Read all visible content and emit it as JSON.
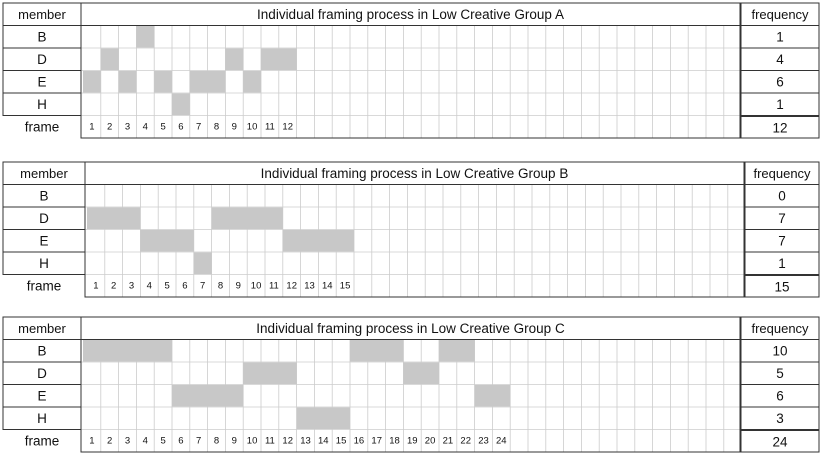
{
  "headers": {
    "member": "member",
    "frequency": "frequency",
    "frame": "frame"
  },
  "colors": {
    "fill": "#c8c8c8",
    "grid": "#cccccc",
    "border": "#333333"
  },
  "blocks": [
    {
      "title": "Individual framing process in Low Creative Group A",
      "frame_labels": [
        "1",
        "2",
        "3",
        "4",
        "5",
        "6",
        "7",
        "8",
        "9",
        "10",
        "11",
        "12"
      ],
      "total": "12",
      "rows": [
        {
          "member": "B",
          "frequency": "1",
          "frames": [
            4
          ]
        },
        {
          "member": "D",
          "frequency": "4",
          "frames": [
            2,
            9,
            11,
            12
          ]
        },
        {
          "member": "E",
          "frequency": "6",
          "frames": [
            1,
            3,
            5,
            7,
            8,
            10
          ]
        },
        {
          "member": "H",
          "frequency": "1",
          "frames": [
            6
          ]
        }
      ]
    },
    {
      "title": "Individual framing process in Low Creative Group B",
      "frame_labels": [
        "1",
        "2",
        "3",
        "4",
        "5",
        "6",
        "7",
        "8",
        "9",
        "10",
        "11",
        "12",
        "13",
        "14",
        "15"
      ],
      "total": "15",
      "rows": [
        {
          "member": "B",
          "frequency": "0",
          "frames": []
        },
        {
          "member": "D",
          "frequency": "7",
          "frames": [
            1,
            2,
            3,
            8,
            9,
            10,
            11
          ]
        },
        {
          "member": "E",
          "frequency": "7",
          "frames": [
            4,
            5,
            6,
            12,
            13,
            14,
            15
          ]
        },
        {
          "member": "H",
          "frequency": "1",
          "frames": [
            7
          ]
        }
      ]
    },
    {
      "title": "Individual framing process in Low Creative Group C",
      "frame_labels": [
        "1",
        "2",
        "3",
        "4",
        "5",
        "6",
        "7",
        "8",
        "9",
        "10",
        "11",
        "12",
        "13",
        "14",
        "15",
        "16",
        "17",
        "18",
        "19",
        "20",
        "21",
        "22",
        "23",
        "24"
      ],
      "total": "24",
      "rows": [
        {
          "member": "B",
          "frequency": "10",
          "frames": [
            1,
            2,
            3,
            4,
            5,
            16,
            17,
            18,
            21,
            22
          ]
        },
        {
          "member": "D",
          "frequency": "5",
          "frames": [
            10,
            11,
            12,
            19,
            20
          ]
        },
        {
          "member": "E",
          "frequency": "6",
          "frames": [
            6,
            7,
            8,
            9,
            23,
            24
          ]
        },
        {
          "member": "H",
          "frequency": "3",
          "frames": [
            13,
            14,
            15
          ]
        }
      ]
    }
  ]
}
